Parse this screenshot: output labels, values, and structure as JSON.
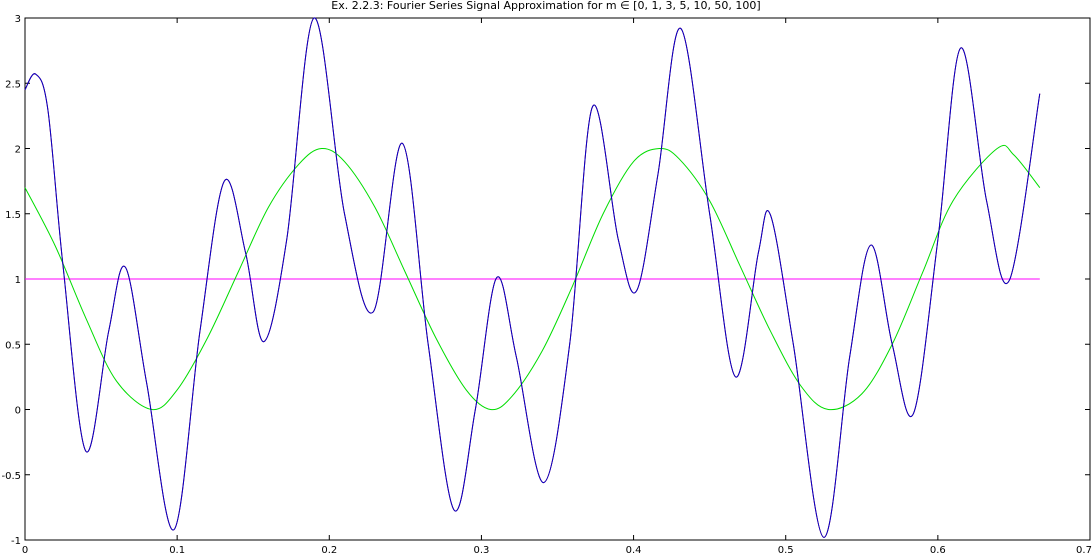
{
  "chart_data": {
    "type": "line",
    "title": "Ex. 2.2.3: Fourier Series Signal Approximation for m ∈ [0, 1, 3, 5, 10, 50, 100]",
    "xlabel": "",
    "ylabel": "",
    "xlim": [
      0,
      0.7
    ],
    "ylim": [
      -1,
      3
    ],
    "xticks": [
      0,
      0.1,
      0.2,
      0.3,
      0.4,
      0.5,
      0.6,
      0.7
    ],
    "xtick_labels": [
      "0",
      "0.1",
      "0.2",
      "0.3",
      "0.4",
      "0.5",
      "0.6",
      "0.7"
    ],
    "yticks": [
      -1,
      -0.5,
      0,
      0.5,
      1,
      1.5,
      2,
      2.5,
      3
    ],
    "ytick_labels": [
      "-1",
      "-0.5",
      "0",
      "0.5",
      "1",
      "1.5",
      "2",
      "2.5",
      "3"
    ],
    "grid": false,
    "series": [
      {
        "color": "#ff00ff",
        "x": [
          0,
          0.667
        ],
        "y": [
          1,
          1
        ]
      },
      {
        "color": "#00dd00",
        "x": [
          0,
          0.02,
          0.04,
          0.06,
          0.0833,
          0.1,
          0.12,
          0.14,
          0.16,
          0.18,
          0.195,
          0.21,
          0.23,
          0.25,
          0.27,
          0.29,
          0.306,
          0.32,
          0.34,
          0.36,
          0.38,
          0.4,
          0.417,
          0.43,
          0.45,
          0.47,
          0.49,
          0.51,
          0.528,
          0.55,
          0.57,
          0.59,
          0.61,
          0.639,
          0.65,
          0.667
        ],
        "y": [
          1.7,
          1.25,
          0.7,
          0.22,
          0.0,
          0.15,
          0.55,
          1.05,
          1.55,
          1.88,
          2.0,
          1.9,
          1.55,
          1.05,
          0.55,
          0.15,
          0.0,
          0.1,
          0.45,
          0.95,
          1.5,
          1.9,
          2.0,
          1.92,
          1.6,
          1.1,
          0.6,
          0.18,
          0.0,
          0.12,
          0.5,
          1.05,
          1.6,
          2.0,
          1.95,
          1.7
        ]
      },
      {
        "color": "#cc0000",
        "x": [
          0,
          0.007,
          0.015,
          0.025,
          0.04,
          0.055,
          0.066,
          0.08,
          0.098,
          0.115,
          0.131,
          0.145,
          0.157,
          0.172,
          0.19,
          0.21,
          0.229,
          0.248,
          0.265,
          0.282,
          0.296,
          0.31,
          0.323,
          0.341,
          0.358,
          0.373,
          0.39,
          0.402,
          0.416,
          0.431,
          0.45,
          0.467,
          0.482,
          0.49,
          0.505,
          0.525,
          0.542,
          0.556,
          0.57,
          0.584,
          0.6,
          0.615,
          0.632,
          0.647,
          0.667
        ],
        "y": [
          2.45,
          2.57,
          2.3,
          1.1,
          -0.32,
          0.6,
          1.09,
          0.2,
          -0.92,
          0.6,
          1.75,
          1.2,
          0.52,
          1.3,
          3.0,
          1.5,
          0.75,
          2.04,
          0.5,
          -0.77,
          0.0,
          1.01,
          0.4,
          -0.56,
          0.5,
          2.32,
          1.3,
          0.91,
          1.8,
          2.92,
          1.5,
          0.25,
          1.2,
          1.49,
          0.5,
          -0.98,
          0.4,
          1.26,
          0.5,
          -0.03,
          1.3,
          2.77,
          1.6,
          0.99,
          2.42
        ]
      },
      {
        "color": "#0000cc",
        "x": [
          0,
          0.007,
          0.015,
          0.025,
          0.04,
          0.055,
          0.066,
          0.08,
          0.098,
          0.115,
          0.131,
          0.145,
          0.157,
          0.172,
          0.19,
          0.21,
          0.229,
          0.248,
          0.265,
          0.282,
          0.296,
          0.31,
          0.323,
          0.341,
          0.358,
          0.373,
          0.39,
          0.402,
          0.416,
          0.431,
          0.45,
          0.467,
          0.482,
          0.49,
          0.505,
          0.525,
          0.542,
          0.556,
          0.57,
          0.584,
          0.6,
          0.615,
          0.632,
          0.647,
          0.667
        ],
        "y": [
          2.45,
          2.57,
          2.3,
          1.1,
          -0.32,
          0.6,
          1.09,
          0.2,
          -0.92,
          0.6,
          1.75,
          1.2,
          0.52,
          1.3,
          3.0,
          1.5,
          0.75,
          2.04,
          0.5,
          -0.77,
          0.0,
          1.01,
          0.4,
          -0.56,
          0.5,
          2.32,
          1.3,
          0.91,
          1.8,
          2.92,
          1.5,
          0.25,
          1.2,
          1.49,
          0.5,
          -0.98,
          0.4,
          1.26,
          0.5,
          -0.03,
          1.3,
          2.77,
          1.6,
          0.99,
          2.42
        ]
      }
    ]
  }
}
